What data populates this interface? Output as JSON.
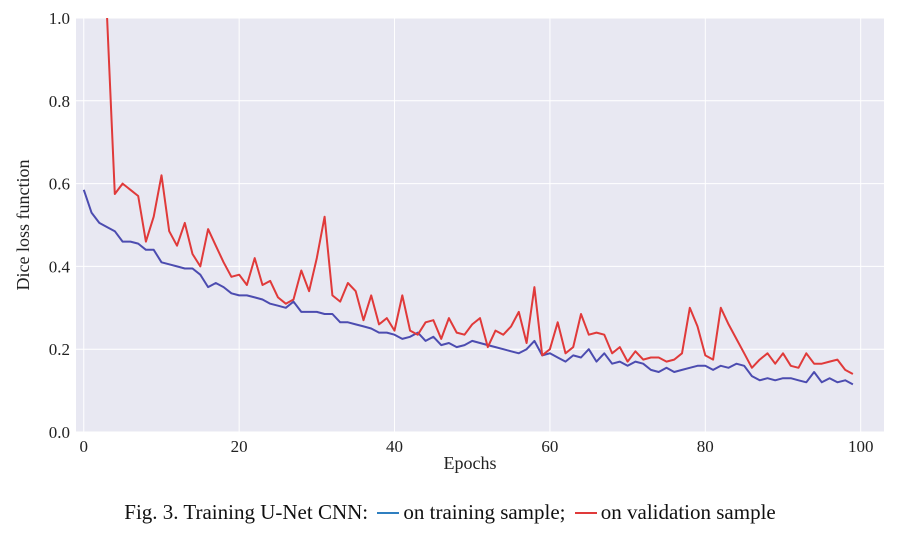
{
  "chart_data": {
    "type": "line",
    "title": "",
    "xlabel": "Epochs",
    "ylabel": "Dice loss function",
    "xlim": [
      -1,
      103
    ],
    "ylim": [
      0.0,
      1.0
    ],
    "xticks": [
      0,
      20,
      40,
      60,
      80,
      100
    ],
    "xtick_labels": [
      "0",
      "20",
      "40",
      "60",
      "80",
      "100"
    ],
    "yticks": [
      0.0,
      0.2,
      0.4,
      0.6,
      0.8,
      1.0
    ],
    "ytick_labels": [
      "0.0",
      "0.2",
      "0.4",
      "0.6",
      "0.8",
      "1.0"
    ],
    "grid": true,
    "background": "#e8e8f2",
    "series": [
      {
        "color": "#4c4cb0",
        "x": [
          0,
          1,
          2,
          3,
          4,
          5,
          6,
          7,
          8,
          9,
          10,
          11,
          12,
          13,
          14,
          15,
          16,
          17,
          18,
          19,
          20,
          21,
          22,
          23,
          24,
          25,
          26,
          27,
          28,
          29,
          30,
          31,
          32,
          33,
          34,
          35,
          36,
          37,
          38,
          39,
          40,
          41,
          42,
          43,
          44,
          45,
          46,
          47,
          48,
          49,
          50,
          51,
          52,
          53,
          54,
          55,
          56,
          57,
          58,
          59,
          60,
          61,
          62,
          63,
          64,
          65,
          66,
          67,
          68,
          69,
          70,
          71,
          72,
          73,
          74,
          75,
          76,
          77,
          78,
          79,
          80,
          81,
          82,
          83,
          84,
          85,
          86,
          87,
          88,
          89,
          90,
          91,
          92,
          93,
          94,
          95,
          96,
          97,
          98,
          99
        ],
        "values": [
          0.585,
          0.53,
          0.505,
          0.495,
          0.485,
          0.46,
          0.46,
          0.455,
          0.44,
          0.44,
          0.41,
          0.405,
          0.4,
          0.395,
          0.395,
          0.38,
          0.35,
          0.36,
          0.35,
          0.335,
          0.33,
          0.33,
          0.325,
          0.32,
          0.31,
          0.305,
          0.3,
          0.315,
          0.29,
          0.29,
          0.29,
          0.285,
          0.285,
          0.265,
          0.265,
          0.26,
          0.255,
          0.25,
          0.24,
          0.24,
          0.235,
          0.225,
          0.23,
          0.24,
          0.22,
          0.23,
          0.21,
          0.215,
          0.205,
          0.21,
          0.22,
          0.215,
          0.21,
          0.205,
          0.2,
          0.195,
          0.19,
          0.2,
          0.22,
          0.185,
          0.19,
          0.18,
          0.17,
          0.185,
          0.18,
          0.2,
          0.17,
          0.19,
          0.165,
          0.17,
          0.16,
          0.17,
          0.165,
          0.15,
          0.145,
          0.155,
          0.145,
          0.15,
          0.155,
          0.16,
          0.16,
          0.15,
          0.16,
          0.155,
          0.165,
          0.16,
          0.135,
          0.125,
          0.13,
          0.125,
          0.13,
          0.13,
          0.125,
          0.12,
          0.145,
          0.12,
          0.13,
          0.12,
          0.125,
          0.115
        ]
      },
      {
        "color": "#e03a3a",
        "x": [
          3,
          4,
          5,
          6,
          7,
          8,
          9,
          10,
          11,
          12,
          13,
          14,
          15,
          16,
          17,
          18,
          19,
          20,
          21,
          22,
          23,
          24,
          25,
          26,
          27,
          28,
          29,
          30,
          31,
          32,
          33,
          34,
          35,
          36,
          37,
          38,
          39,
          40,
          41,
          42,
          43,
          44,
          45,
          46,
          47,
          48,
          49,
          50,
          51,
          52,
          53,
          54,
          55,
          56,
          57,
          58,
          59,
          60,
          61,
          62,
          63,
          64,
          65,
          66,
          67,
          68,
          69,
          70,
          71,
          72,
          73,
          74,
          75,
          76,
          77,
          78,
          79,
          80,
          81,
          82,
          83,
          84,
          85,
          86,
          87,
          88,
          89,
          90,
          91,
          92,
          93,
          94,
          95,
          96,
          97,
          98,
          99
        ],
        "values": [
          1.0,
          0.575,
          0.6,
          0.585,
          0.57,
          0.46,
          0.52,
          0.62,
          0.485,
          0.45,
          0.505,
          0.43,
          0.4,
          0.49,
          0.45,
          0.41,
          0.375,
          0.38,
          0.355,
          0.42,
          0.355,
          0.365,
          0.325,
          0.31,
          0.32,
          0.39,
          0.34,
          0.42,
          0.52,
          0.33,
          0.315,
          0.36,
          0.34,
          0.27,
          0.33,
          0.26,
          0.275,
          0.245,
          0.33,
          0.245,
          0.235,
          0.265,
          0.27,
          0.225,
          0.275,
          0.24,
          0.235,
          0.26,
          0.275,
          0.205,
          0.245,
          0.235,
          0.255,
          0.29,
          0.215,
          0.35,
          0.185,
          0.2,
          0.265,
          0.19,
          0.205,
          0.285,
          0.235,
          0.24,
          0.235,
          0.19,
          0.205,
          0.17,
          0.195,
          0.175,
          0.18,
          0.18,
          0.17,
          0.175,
          0.19,
          0.3,
          0.255,
          0.185,
          0.175,
          0.3,
          0.26,
          0.225,
          0.19,
          0.155,
          0.175,
          0.19,
          0.165,
          0.19,
          0.16,
          0.155,
          0.19,
          0.165,
          0.165,
          0.17,
          0.175,
          0.15,
          0.14
        ]
      }
    ]
  },
  "caption": {
    "prefix": "Fig. 3. Training U-Net CNN:",
    "training_text": "on training sample;",
    "validation_text": "on validation sample"
  }
}
